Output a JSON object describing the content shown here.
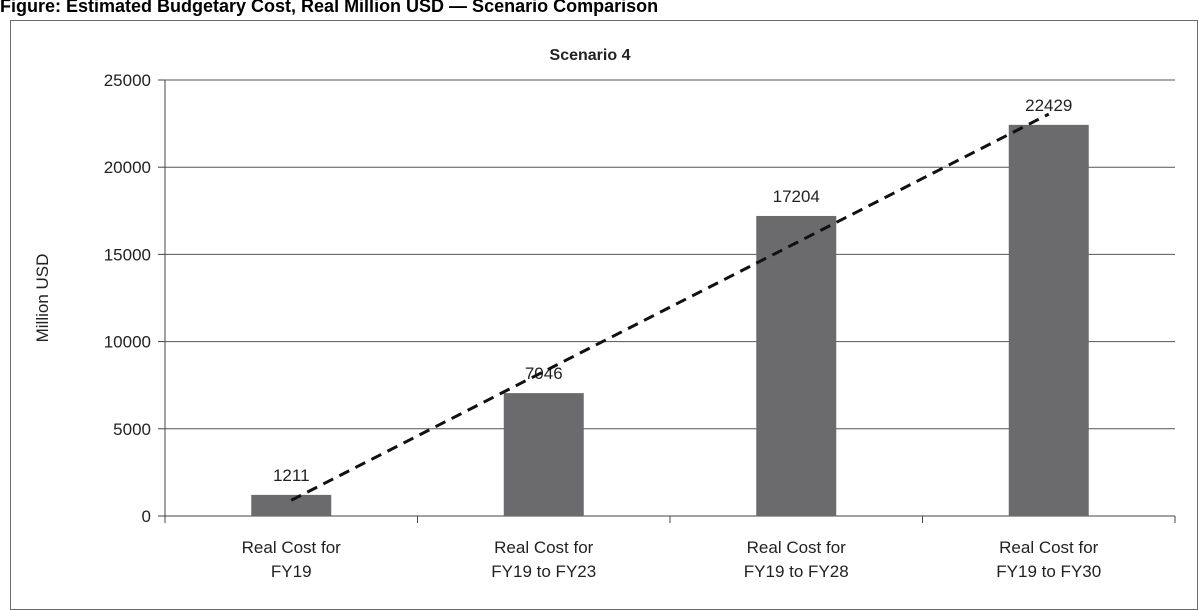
{
  "caption": "Figure: Estimated Budgetary Cost, Real Million USD — Scenario Comparison",
  "chart_data": {
    "type": "bar",
    "title": "Scenario 4",
    "xlabel": "",
    "ylabel": "Million USD",
    "ylim": [
      0,
      25000
    ],
    "yticks": [
      0,
      5000,
      10000,
      15000,
      20000,
      25000
    ],
    "categories": [
      [
        "Real Cost for",
        "FY19"
      ],
      [
        "Real Cost for",
        "FY19 to FY23"
      ],
      [
        "Real Cost for",
        "FY19 to FY28"
      ],
      [
        "Real Cost for",
        "FY19 to FY30"
      ]
    ],
    "values": [
      1211,
      7046,
      17204,
      22429
    ],
    "data_labels": [
      "1211",
      "7046",
      "17204",
      "22429"
    ],
    "trendline": {
      "style": "dashed",
      "type": "linear"
    },
    "grid": true,
    "legend": "none",
    "colors": {
      "bar": "#6b6b6e",
      "trend": "#111111",
      "grid": "#555555"
    }
  }
}
